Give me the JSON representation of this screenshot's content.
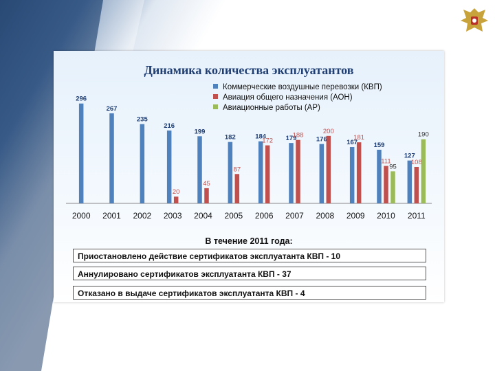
{
  "chart_data": {
    "type": "bar",
    "title": "Динамика количества эксплуатантов",
    "categories": [
      "2000",
      "2001",
      "2002",
      "2003",
      "2004",
      "2005",
      "2006",
      "2007",
      "2008",
      "2009",
      "2010",
      "2011"
    ],
    "series": [
      {
        "name": "Коммерческие воздушные перевозки (КВП)",
        "color": "#4f81bd",
        "values": [
          296,
          267,
          235,
          216,
          199,
          182,
          184,
          179,
          176,
          167,
          159,
          127
        ]
      },
      {
        "name": "Авиация общего назначения (АОН)",
        "color": "#c0504d",
        "values": [
          null,
          null,
          null,
          20,
          45,
          87,
          172,
          188,
          200,
          181,
          111,
          108
        ]
      },
      {
        "name": "Авиационные работы (АР)",
        "color": "#9bbb59",
        "values": [
          null,
          null,
          null,
          null,
          null,
          null,
          null,
          null,
          null,
          null,
          95,
          190
        ]
      }
    ],
    "ylim": [
      0,
      330
    ],
    "legend": "top-right",
    "grid": false
  },
  "summary": {
    "heading": "В течение 2011 года:",
    "items": [
      "Приостановлено действие сертификатов эксплуатанта КВП  -  10",
      "Аннулировано сертификатов эксплуатанта КВП  -   37",
      "Отказано в выдаче сертификатов эксплуатанта КВП - 4"
    ]
  },
  "colors": {
    "title": "#1f3e73",
    "axis": "#888888"
  }
}
